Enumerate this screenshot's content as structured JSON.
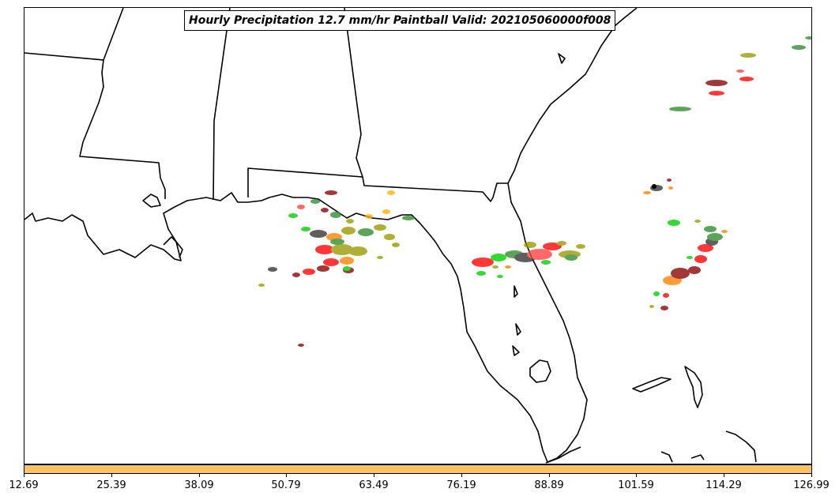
{
  "title": "Hourly Precipitation 12.7 mm/hr Paintball Valid: 202105060000f008",
  "colorbar": {
    "color": "#ffc263",
    "tick_labels": [
      "12.69",
      "25.39",
      "38.09",
      "50.79",
      "63.49",
      "76.19",
      "88.89",
      "101.59",
      "114.29",
      "126.99"
    ]
  },
  "colors": {
    "coastline": "#000000",
    "member_colors": [
      "#ff0000",
      "#00cc00",
      "#999900",
      "#8b0000",
      "#333333",
      "#ff8000",
      "#ffb000",
      "#2e8b2e",
      "#ff4040"
    ]
  }
}
